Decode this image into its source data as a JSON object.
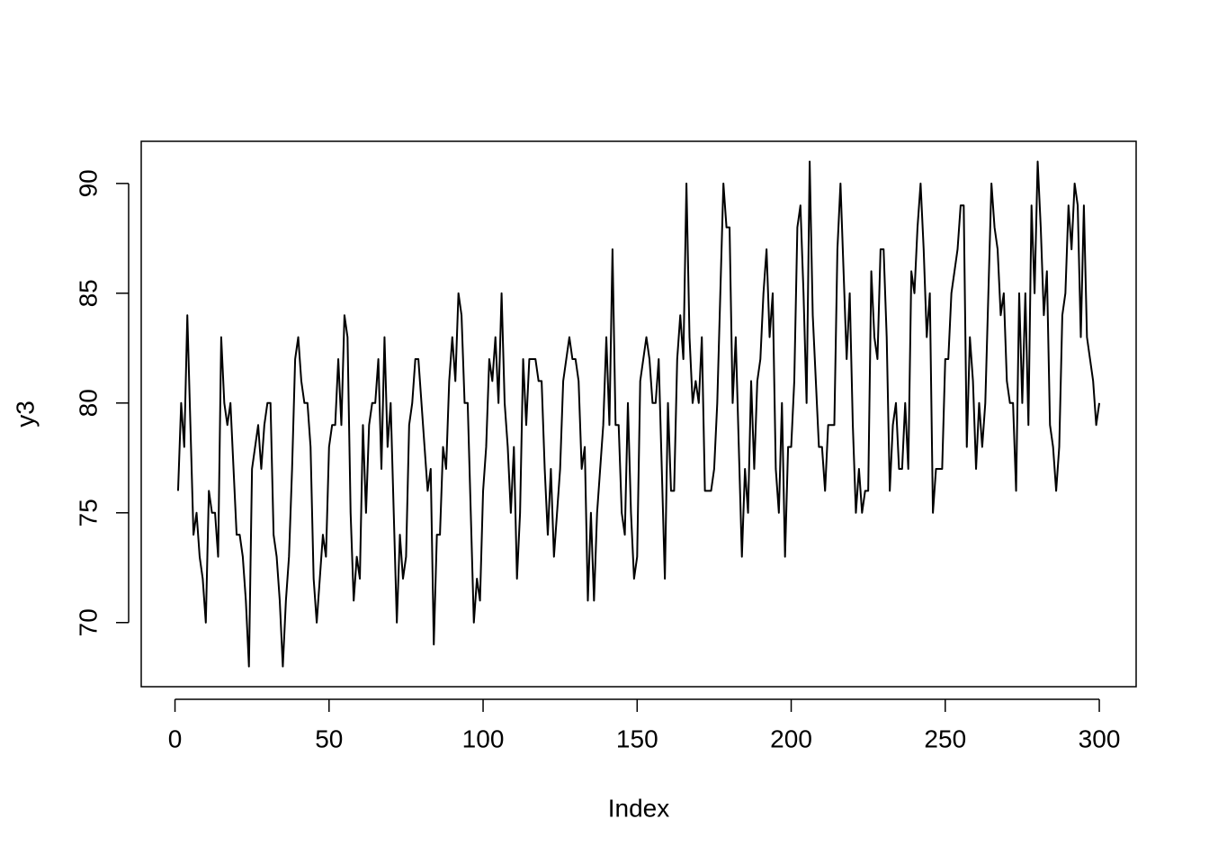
{
  "chart_data": {
    "type": "line",
    "x_label": "Index",
    "y_label": "y3",
    "color": "#000000",
    "x": [
      1,
      2,
      3,
      4,
      5,
      6,
      7,
      8,
      9,
      10,
      11,
      12,
      13,
      14,
      15,
      16,
      17,
      18,
      19,
      20,
      21,
      22,
      23,
      24,
      25,
      26,
      27,
      28,
      29,
      30,
      31,
      32,
      33,
      34,
      35,
      36,
      37,
      38,
      39,
      40,
      41,
      42,
      43,
      44,
      45,
      46,
      47,
      48,
      49,
      50,
      51,
      52,
      53,
      54,
      55,
      56,
      57,
      58,
      59,
      60,
      61,
      62,
      63,
      64,
      65,
      66,
      67,
      68,
      69,
      70,
      71,
      72,
      73,
      74,
      75,
      76,
      77,
      78,
      79,
      80,
      81,
      82,
      83,
      84,
      85,
      86,
      87,
      88,
      89,
      90,
      91,
      92,
      93,
      94,
      95,
      96,
      97,
      98,
      99,
      100,
      101,
      102,
      103,
      104,
      105,
      106,
      107,
      108,
      109,
      110,
      111,
      112,
      113,
      114,
      115,
      116,
      117,
      118,
      119,
      120,
      121,
      122,
      123,
      124,
      125,
      126,
      127,
      128,
      129,
      130,
      131,
      132,
      133,
      134,
      135,
      136,
      137,
      138,
      139,
      140,
      141,
      142,
      143,
      144,
      145,
      146,
      147,
      148,
      149,
      150,
      151,
      152,
      153,
      154,
      155,
      156,
      157,
      158,
      159,
      160,
      161,
      162,
      163,
      164,
      165,
      166,
      167,
      168,
      169,
      170,
      171,
      172,
      173,
      174,
      175,
      176,
      177,
      178,
      179,
      180,
      181,
      182,
      183,
      184,
      185,
      186,
      187,
      188,
      189,
      190,
      191,
      192,
      193,
      194,
      195,
      196,
      197,
      198,
      199,
      200,
      201,
      202,
      203,
      204,
      205,
      206,
      207,
      208,
      209,
      210,
      211,
      212,
      213,
      214,
      215,
      216,
      217,
      218,
      219,
      220,
      221,
      222,
      223,
      224,
      225,
      226,
      227,
      228,
      229,
      230,
      231,
      232,
      233,
      234,
      235,
      236,
      237,
      238,
      239,
      240,
      241,
      242,
      243,
      244,
      245,
      246,
      247,
      248,
      249,
      250,
      251,
      252,
      253,
      254,
      255,
      256,
      257,
      258,
      259,
      260,
      261,
      262,
      263,
      264,
      265,
      266,
      267,
      268,
      269,
      270,
      271,
      272,
      273,
      274,
      275,
      276,
      277,
      278,
      279,
      280,
      281,
      282,
      283,
      284,
      285,
      286,
      287,
      288,
      289,
      290,
      291,
      292,
      293,
      294,
      295,
      296,
      297,
      298,
      299,
      300
    ],
    "values": [
      76,
      80,
      78,
      84,
      79,
      74,
      75,
      73,
      72,
      70,
      76,
      75,
      75,
      73,
      83,
      80,
      79,
      80,
      77,
      74,
      74,
      73,
      71,
      68,
      77,
      78,
      79,
      77,
      79,
      80,
      80,
      74,
      73,
      71,
      68,
      71,
      73,
      77,
      82,
      83,
      81,
      80,
      80,
      78,
      72,
      70,
      72,
      74,
      73,
      78,
      79,
      79,
      82,
      79,
      84,
      83,
      75,
      71,
      73,
      72,
      79,
      75,
      79,
      80,
      80,
      82,
      77,
      83,
      78,
      80,
      75,
      70,
      74,
      72,
      73,
      79,
      80,
      82,
      82,
      80,
      78,
      76,
      77,
      69,
      74,
      74,
      78,
      77,
      81,
      83,
      81,
      85,
      84,
      80,
      80,
      75,
      70,
      72,
      71,
      76,
      78,
      82,
      81,
      83,
      80,
      85,
      80,
      78,
      75,
      78,
      72,
      75,
      82,
      79,
      82,
      82,
      82,
      81,
      81,
      77,
      74,
      77,
      73,
      75,
      77,
      81,
      82,
      83,
      82,
      82,
      81,
      77,
      78,
      71,
      75,
      71,
      75,
      77,
      79,
      83,
      79,
      87,
      79,
      79,
      75,
      74,
      80,
      75,
      72,
      73,
      81,
      82,
      83,
      82,
      80,
      80,
      82,
      77,
      72,
      80,
      76,
      76,
      82,
      84,
      82,
      90,
      83,
      80,
      81,
      80,
      83,
      76,
      76,
      76,
      77,
      80,
      85,
      90,
      88,
      88,
      80,
      83,
      78,
      73,
      77,
      75,
      81,
      77,
      81,
      82,
      85,
      87,
      83,
      85,
      77,
      75,
      80,
      73,
      78,
      78,
      81,
      88,
      89,
      85,
      80,
      91,
      84,
      81,
      78,
      78,
      76,
      79,
      79,
      79,
      87,
      90,
      86,
      82,
      85,
      79,
      75,
      77,
      75,
      76,
      76,
      86,
      83,
      82,
      87,
      87,
      83,
      76,
      79,
      80,
      77,
      77,
      80,
      77,
      86,
      85,
      88,
      90,
      87,
      83,
      85,
      75,
      77,
      77,
      77,
      82,
      82,
      85,
      86,
      87,
      89,
      89,
      78,
      83,
      81,
      77,
      80,
      78,
      80,
      85,
      90,
      88,
      87,
      84,
      85,
      81,
      80,
      80,
      76,
      85,
      80,
      85,
      79,
      89,
      85,
      91,
      88,
      84,
      86,
      79,
      78,
      76,
      78,
      84,
      85,
      89,
      87,
      90,
      89,
      83,
      89,
      83,
      82,
      81,
      79,
      80
    ],
    "xlim": [
      -10.96,
      311.96
    ],
    "ylim": [
      67.08,
      91.92
    ],
    "xticks": [
      0,
      50,
      100,
      150,
      200,
      250,
      300
    ],
    "yticks": [
      70,
      75,
      80,
      85,
      90
    ]
  }
}
